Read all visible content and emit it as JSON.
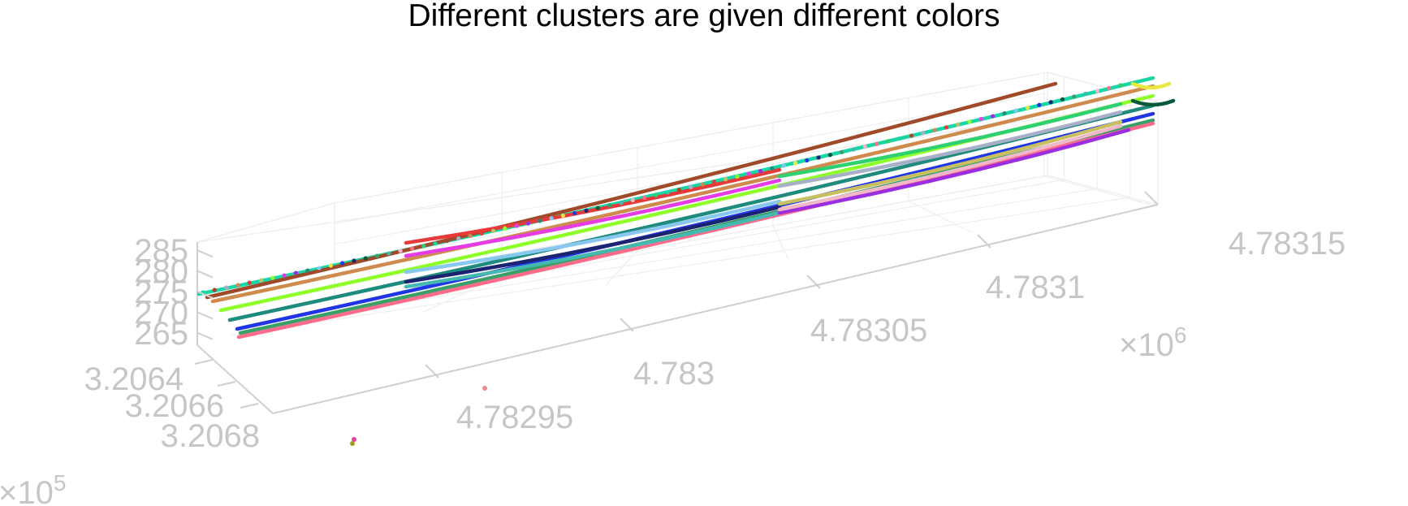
{
  "chart_data": {
    "type": "scatter",
    "projection": "3d",
    "title": "Different clusters are given different colors",
    "x_axis": {
      "ticks": [
        "4.78295",
        "4.783",
        "4.78305",
        "4.7831",
        "4.78315"
      ],
      "values": [
        4.78295,
        4.783,
        4.78305,
        4.7831,
        4.78315
      ],
      "exponent_label": "×10",
      "exponent_power": "6"
    },
    "y_axis": {
      "ticks": [
        "3.2064",
        "3.2066",
        "3.2068"
      ],
      "values": [
        3.2064,
        3.2066,
        3.2068
      ],
      "exponent_label": "×10",
      "exponent_power": "5"
    },
    "z_axis": {
      "ticks": [
        "265",
        "270",
        "275",
        "280",
        "285"
      ],
      "values": [
        265,
        270,
        275,
        280,
        285
      ]
    },
    "grid": true,
    "legend": "none",
    "series": [
      {
        "color": "#18d6a6"
      },
      {
        "color": "#cf8a4e"
      },
      {
        "color": "#8fff2a"
      },
      {
        "color": "#1f8b7d"
      },
      {
        "color": "#1f35e6"
      },
      {
        "color": "#3aa06a"
      },
      {
        "color": "#ff6b8a"
      },
      {
        "color": "#a04a2a"
      },
      {
        "color": "#e83a3a"
      },
      {
        "color": "#e63ce6"
      },
      {
        "color": "#88c8f0"
      },
      {
        "color": "#1a2470"
      },
      {
        "color": "#45b8b2"
      },
      {
        "color": "#2fd070"
      },
      {
        "color": "#a8b0c8"
      },
      {
        "color": "#c8c060"
      },
      {
        "color": "#9a2ee0"
      },
      {
        "color": "#e8e840"
      },
      {
        "color": "#0a5a3a"
      },
      {
        "color": "#f0b8c8"
      }
    ],
    "outliers": [
      {
        "color": "#f08a8a"
      },
      {
        "color": "#e040a0"
      },
      {
        "color": "#a0a020"
      }
    ]
  }
}
